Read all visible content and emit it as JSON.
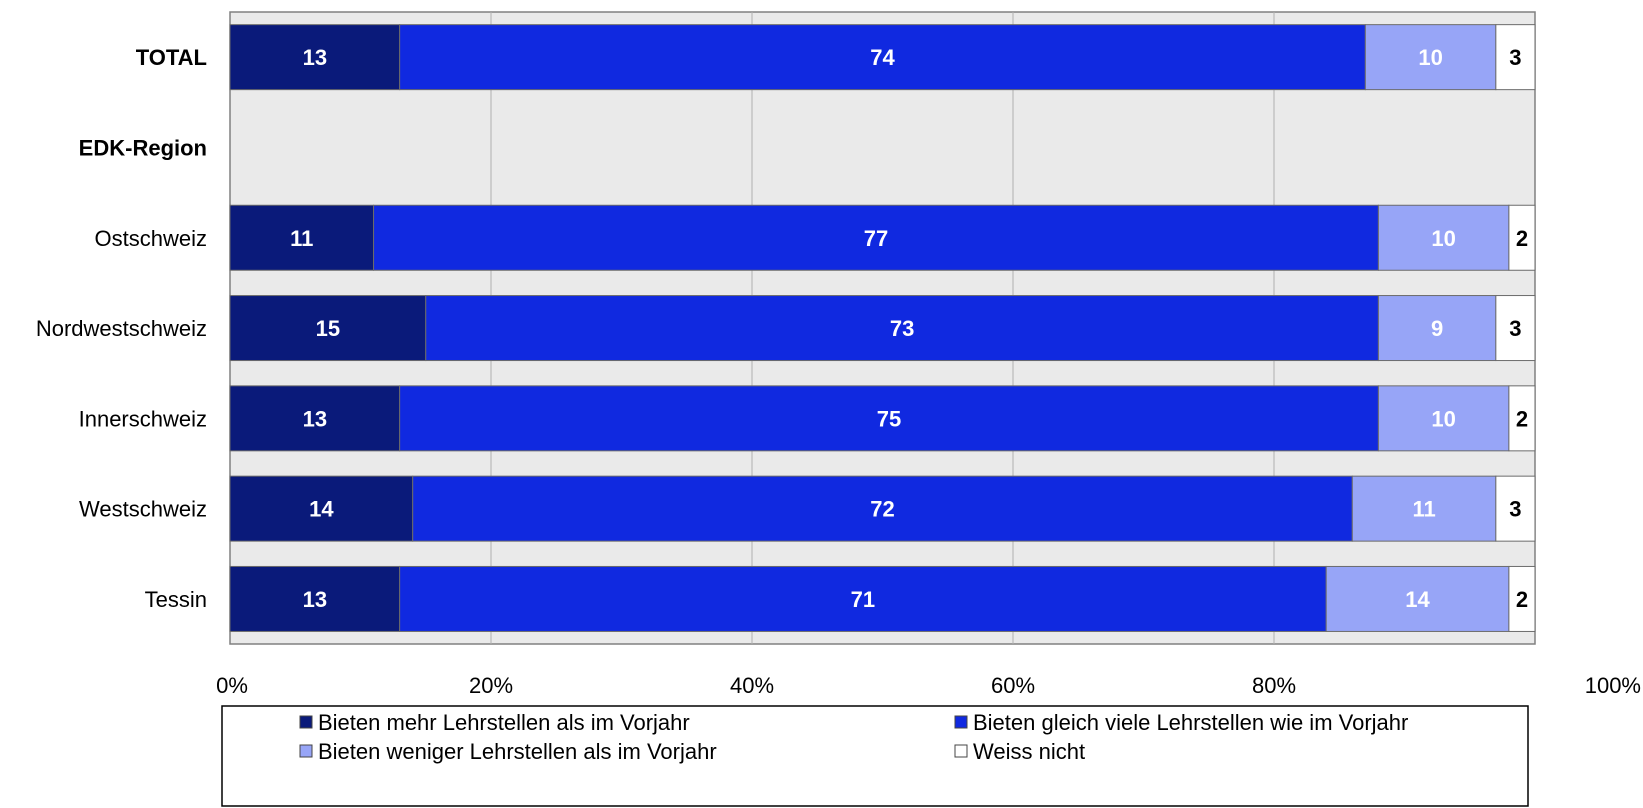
{
  "chart_data": {
    "type": "bar",
    "orientation": "horizontal",
    "stacked": "percent",
    "categories": [
      "TOTAL",
      "EDK-Region",
      "Ostschweiz",
      "Nordwestschweiz",
      "Innerschweiz",
      "Westschweiz",
      "Tessin"
    ],
    "bold_categories": [
      "TOTAL",
      "EDK-Region"
    ],
    "series": [
      {
        "name": "Bieten mehr Lehrstellen als im Vorjahr",
        "color": "#0a1a7a",
        "label_color": "#ffffff",
        "values": [
          13,
          null,
          11,
          15,
          13,
          14,
          13
        ]
      },
      {
        "name": "Bieten gleich viele Lehrstellen wie im Vorjahr",
        "color": "#1029e0",
        "label_color": "#ffffff",
        "values": [
          74,
          null,
          77,
          73,
          75,
          72,
          71
        ]
      },
      {
        "name": "Bieten weniger Lehrstellen als im Vorjahr",
        "color": "#97a5f7",
        "label_color": "#ffffff",
        "values": [
          10,
          null,
          10,
          9,
          10,
          11,
          14
        ]
      },
      {
        "name": "Weiss nicht",
        "color": "#ffffff",
        "label_color": "#000000",
        "values": [
          3,
          null,
          2,
          3,
          2,
          3,
          2
        ]
      }
    ],
    "x_ticks": [
      "0%",
      "20%",
      "40%",
      "60%",
      "80%",
      "100%"
    ],
    "xlim": [
      0,
      100
    ],
    "grid": true,
    "plot_background": "#eaeaea",
    "legend_position": "bottom"
  }
}
